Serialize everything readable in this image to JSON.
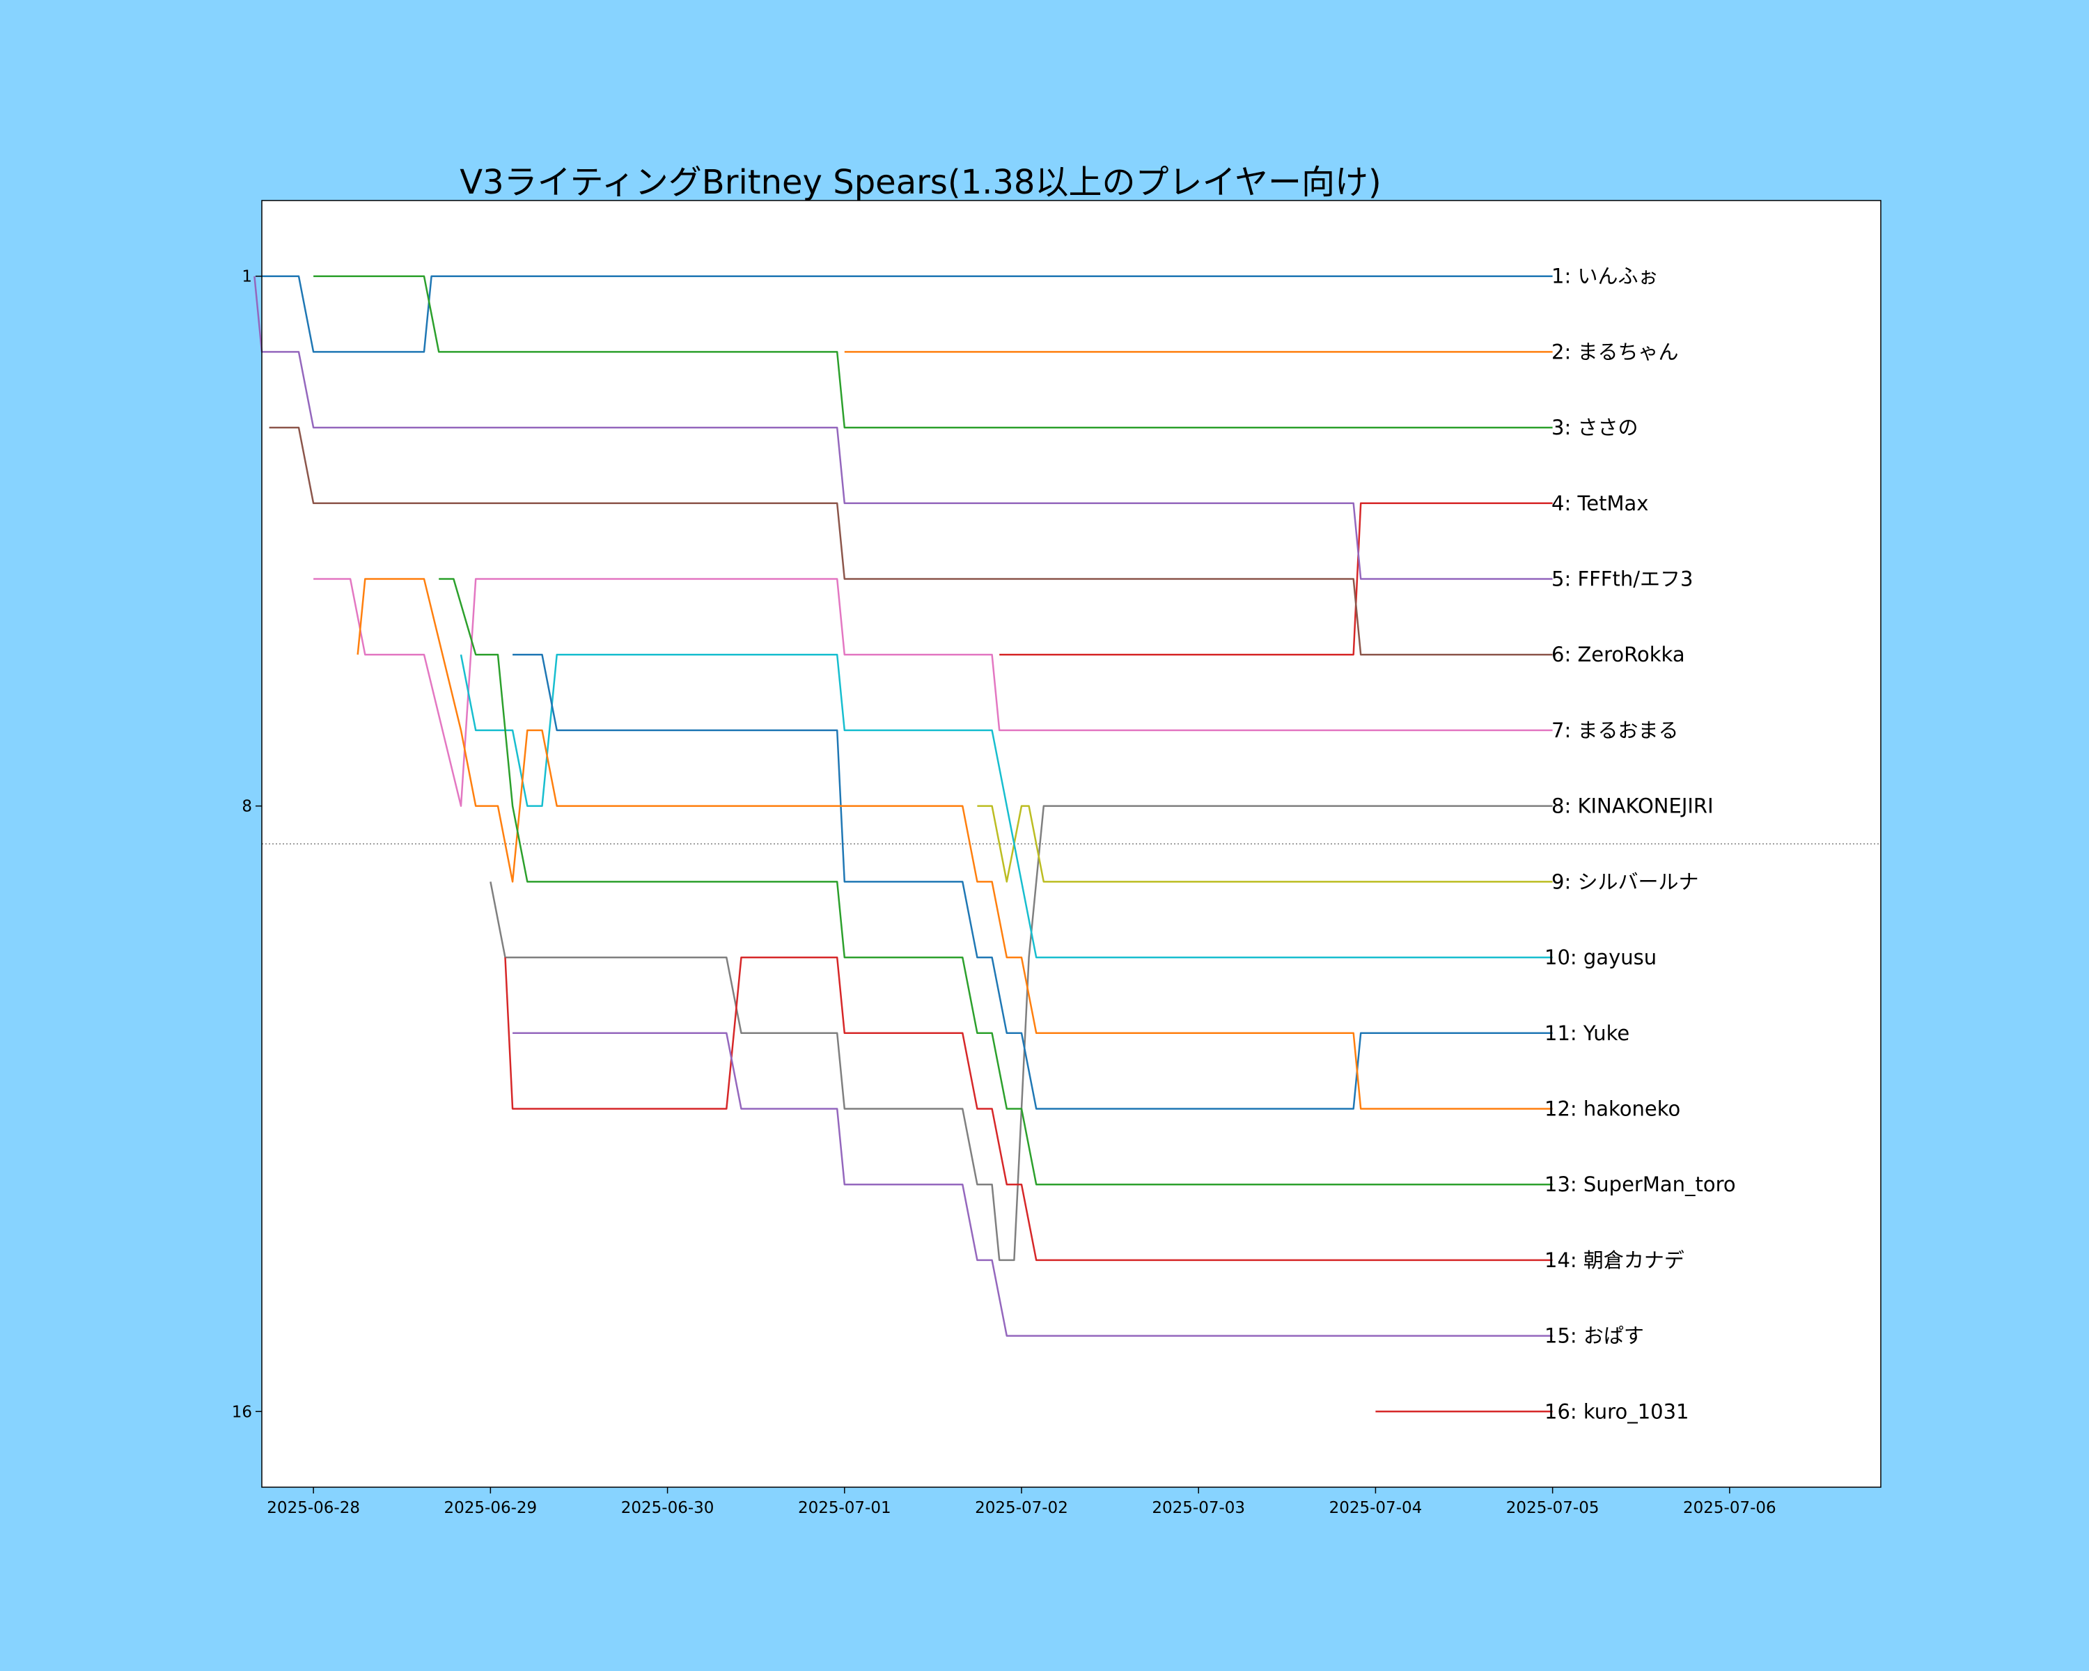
{
  "chart_data": {
    "type": "line",
    "title": "V3ライティングBritney Spears(1.38以上のプレイヤー向け)",
    "xlabel": "",
    "ylabel": "",
    "x_ticks": [
      "2025-06-28",
      "2025-06-29",
      "2025-06-30",
      "2025-07-01",
      "2025-07-02",
      "2025-07-03",
      "2025-07-04",
      "2025-07-05",
      "2025-07-06"
    ],
    "y_ticks": [
      1,
      8,
      16
    ],
    "xlim": [
      "2025-06-27 17:00",
      "2025-07-06 20:30"
    ],
    "ylim": [
      17,
      0
    ],
    "inverted_y": true,
    "grid": false,
    "cutoff_line": {
      "y": 8.5,
      "style": "dotted",
      "color": "#808080"
    },
    "series": [
      {
        "label": "1: いんふぉ",
        "color": "#1f77b4",
        "points": [
          [
            "2025-06-27 17:00",
            1
          ],
          [
            "2025-06-27 22:00",
            1
          ],
          [
            "2025-06-28 00:00",
            2
          ],
          [
            "2025-06-28 15:00",
            2
          ],
          [
            "2025-06-28 16:00",
            1
          ],
          [
            "2025-07-05 00:00",
            1
          ]
        ]
      },
      {
        "label": "2: まるちゃん",
        "color": "#ff7f0e",
        "points": [
          [
            "2025-07-01 00:00",
            2
          ],
          [
            "2025-07-05 00:00",
            2
          ]
        ]
      },
      {
        "label": "3: ささの",
        "color": "#2ca02c",
        "points": [
          [
            "2025-06-28 00:00",
            1
          ],
          [
            "2025-06-28 15:00",
            1
          ],
          [
            "2025-06-28 17:00",
            2
          ],
          [
            "2025-06-30 23:00",
            2
          ],
          [
            "2025-07-01 00:00",
            3
          ],
          [
            "2025-07-05 00:00",
            3
          ]
        ]
      },
      {
        "label": "4: TetMax",
        "color": "#d62728",
        "points": [
          [
            "2025-07-01 21:00",
            6
          ],
          [
            "2025-07-03 21:00",
            6
          ],
          [
            "2025-07-03 22:00",
            4
          ],
          [
            "2025-07-05 00:00",
            4
          ]
        ]
      },
      {
        "label": "5: FFFth/エフ3",
        "color": "#9467bd",
        "points": [
          [
            "2025-06-27 16:00",
            1
          ],
          [
            "2025-06-27 17:00",
            2
          ],
          [
            "2025-06-27 22:00",
            2
          ],
          [
            "2025-06-28 00:00",
            3
          ],
          [
            "2025-06-30 23:00",
            3
          ],
          [
            "2025-07-01 00:00",
            4
          ],
          [
            "2025-07-03 21:00",
            4
          ],
          [
            "2025-07-03 22:00",
            5
          ],
          [
            "2025-07-05 00:00",
            5
          ]
        ]
      },
      {
        "label": "6: ZeroRokka",
        "color": "#8c564b",
        "points": [
          [
            "2025-06-27 18:00",
            3
          ],
          [
            "2025-06-27 22:00",
            3
          ],
          [
            "2025-06-28 00:00",
            4
          ],
          [
            "2025-06-30 23:00",
            4
          ],
          [
            "2025-07-01 00:00",
            5
          ],
          [
            "2025-07-03 21:00",
            5
          ],
          [
            "2025-07-03 22:00",
            6
          ],
          [
            "2025-07-05 00:00",
            6
          ]
        ]
      },
      {
        "label": "7: まるおまる",
        "color": "#e377c2",
        "points": [
          [
            "2025-06-28 00:00",
            5
          ],
          [
            "2025-06-28 05:00",
            5
          ],
          [
            "2025-06-28 07:00",
            6
          ],
          [
            "2025-06-28 15:00",
            6
          ],
          [
            "2025-06-28 20:00",
            8
          ],
          [
            "2025-06-28 22:00",
            5
          ],
          [
            "2025-06-30 23:00",
            5
          ],
          [
            "2025-07-01 00:00",
            6
          ],
          [
            "2025-07-01 20:00",
            6
          ],
          [
            "2025-07-01 21:00",
            7
          ],
          [
            "2025-07-05 00:00",
            7
          ]
        ]
      },
      {
        "label": "8: KINAKONEJIRI",
        "color": "#7f7f7f",
        "points": [
          [
            "2025-06-29 00:00",
            9
          ],
          [
            "2025-06-29 02:00",
            10
          ],
          [
            "2025-06-30 08:00",
            10
          ],
          [
            "2025-06-30 10:00",
            11
          ],
          [
            "2025-06-30 23:00",
            11
          ],
          [
            "2025-07-01 00:00",
            12
          ],
          [
            "2025-07-01 16:00",
            12
          ],
          [
            "2025-07-01 18:00",
            13
          ],
          [
            "2025-07-01 20:00",
            13
          ],
          [
            "2025-07-01 21:00",
            14
          ],
          [
            "2025-07-01 23:00",
            14
          ],
          [
            "2025-07-02 01:00",
            10
          ],
          [
            "2025-07-02 03:00",
            8
          ],
          [
            "2025-07-05 00:00",
            8
          ]
        ]
      },
      {
        "label": "9: シルバールナ",
        "color": "#bcbd22",
        "points": [
          [
            "2025-07-01 18:00",
            8
          ],
          [
            "2025-07-01 20:00",
            8
          ],
          [
            "2025-07-01 22:00",
            9
          ],
          [
            "2025-07-02 00:00",
            8
          ],
          [
            "2025-07-02 01:00",
            8
          ],
          [
            "2025-07-02 03:00",
            9
          ],
          [
            "2025-07-05 00:00",
            9
          ]
        ]
      },
      {
        "label": "10: gayusu",
        "color": "#17becf",
        "points": [
          [
            "2025-06-28 20:00",
            6
          ],
          [
            "2025-06-28 22:00",
            7
          ],
          [
            "2025-06-29 03:00",
            7
          ],
          [
            "2025-06-29 05:00",
            8
          ],
          [
            "2025-06-29 07:00",
            8
          ],
          [
            "2025-06-29 09:00",
            6
          ],
          [
            "2025-06-30 23:00",
            6
          ],
          [
            "2025-07-01 00:00",
            7
          ],
          [
            "2025-07-01 20:00",
            7
          ],
          [
            "2025-07-01 22:00",
            8
          ],
          [
            "2025-07-02 00:00",
            9
          ],
          [
            "2025-07-02 02:00",
            10
          ],
          [
            "2025-07-05 00:00",
            10
          ]
        ]
      },
      {
        "label": "11: Yuke",
        "color": "#1f77b4",
        "points": [
          [
            "2025-06-29 03:00",
            6
          ],
          [
            "2025-06-29 07:00",
            6
          ],
          [
            "2025-06-29 09:00",
            7
          ],
          [
            "2025-06-30 23:00",
            7
          ],
          [
            "2025-07-01 00:00",
            9
          ],
          [
            "2025-07-01 16:00",
            9
          ],
          [
            "2025-07-01 18:00",
            10
          ],
          [
            "2025-07-01 20:00",
            10
          ],
          [
            "2025-07-01 22:00",
            11
          ],
          [
            "2025-07-02 00:00",
            11
          ],
          [
            "2025-07-02 02:00",
            12
          ],
          [
            "2025-07-03 21:00",
            12
          ],
          [
            "2025-07-03 22:00",
            11
          ],
          [
            "2025-07-05 00:00",
            11
          ]
        ]
      },
      {
        "label": "12: hakoneko",
        "color": "#ff7f0e",
        "points": [
          [
            "2025-06-28 06:00",
            6
          ],
          [
            "2025-06-28 07:00",
            5
          ],
          [
            "2025-06-28 15:00",
            5
          ],
          [
            "2025-06-28 20:00",
            7
          ],
          [
            "2025-06-28 22:00",
            8
          ],
          [
            "2025-06-29 01:00",
            8
          ],
          [
            "2025-06-29 03:00",
            9
          ],
          [
            "2025-06-29 05:00",
            7
          ],
          [
            "2025-06-29 07:00",
            7
          ],
          [
            "2025-06-29 09:00",
            8
          ],
          [
            "2025-07-01 16:00",
            8
          ],
          [
            "2025-07-01 18:00",
            9
          ],
          [
            "2025-07-01 20:00",
            9
          ],
          [
            "2025-07-01 22:00",
            10
          ],
          [
            "2025-07-02 00:00",
            10
          ],
          [
            "2025-07-02 02:00",
            11
          ],
          [
            "2025-07-03 21:00",
            11
          ],
          [
            "2025-07-03 22:00",
            12
          ],
          [
            "2025-07-05 00:00",
            12
          ]
        ]
      },
      {
        "label": "13: SuperMan_toro",
        "color": "#2ca02c",
        "points": [
          [
            "2025-06-28 17:00",
            5
          ],
          [
            "2025-06-28 19:00",
            5
          ],
          [
            "2025-06-28 22:00",
            6
          ],
          [
            "2025-06-29 01:00",
            6
          ],
          [
            "2025-06-29 03:00",
            8
          ],
          [
            "2025-06-29 05:00",
            9
          ],
          [
            "2025-06-30 23:00",
            9
          ],
          [
            "2025-07-01 00:00",
            10
          ],
          [
            "2025-07-01 16:00",
            10
          ],
          [
            "2025-07-01 18:00",
            11
          ],
          [
            "2025-07-01 20:00",
            11
          ],
          [
            "2025-07-01 22:00",
            12
          ],
          [
            "2025-07-02 00:00",
            12
          ],
          [
            "2025-07-02 02:00",
            13
          ],
          [
            "2025-07-05 00:00",
            13
          ]
        ]
      },
      {
        "label": "14: 朝倉カナデ",
        "color": "#d62728",
        "points": [
          [
            "2025-06-29 02:00",
            10
          ],
          [
            "2025-06-29 03:00",
            12
          ],
          [
            "2025-06-30 08:00",
            12
          ],
          [
            "2025-06-30 10:00",
            10
          ],
          [
            "2025-06-30 23:00",
            10
          ],
          [
            "2025-07-01 00:00",
            11
          ],
          [
            "2025-07-01 16:00",
            11
          ],
          [
            "2025-07-01 18:00",
            12
          ],
          [
            "2025-07-01 20:00",
            12
          ],
          [
            "2025-07-01 22:00",
            13
          ],
          [
            "2025-07-02 00:00",
            13
          ],
          [
            "2025-07-02 02:00",
            14
          ],
          [
            "2025-07-05 00:00",
            14
          ]
        ]
      },
      {
        "label": "15: おぱす",
        "color": "#9467bd",
        "points": [
          [
            "2025-06-29 03:00",
            11
          ],
          [
            "2025-06-30 08:00",
            11
          ],
          [
            "2025-06-30 10:00",
            12
          ],
          [
            "2025-06-30 23:00",
            12
          ],
          [
            "2025-07-01 00:00",
            13
          ],
          [
            "2025-07-01 16:00",
            13
          ],
          [
            "2025-07-01 18:00",
            14
          ],
          [
            "2025-07-01 20:00",
            14
          ],
          [
            "2025-07-01 22:00",
            15
          ],
          [
            "2025-07-05 00:00",
            15
          ]
        ]
      },
      {
        "label": "16: kuro_1031",
        "color": "#d62728",
        "points": [
          [
            "2025-07-04 00:00",
            16
          ],
          [
            "2025-07-05 00:00",
            16
          ]
        ]
      }
    ]
  }
}
